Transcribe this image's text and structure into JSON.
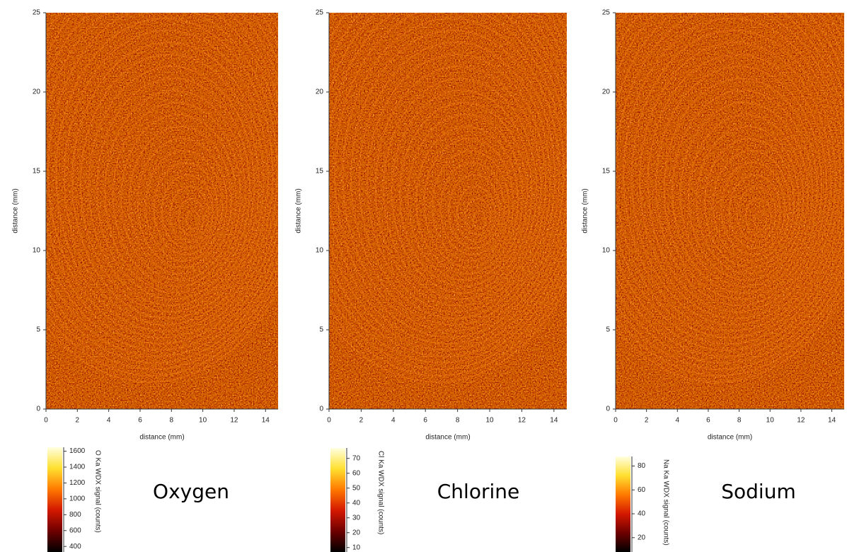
{
  "chart_data": [
    {
      "type": "heatmap",
      "annotation": "Oxygen",
      "xlabel": "distance (mm)",
      "ylabel": "distance (mm)",
      "xlim": [
        0,
        14.8
      ],
      "xticks": [
        0,
        2,
        4,
        6,
        8,
        10,
        12,
        14
      ],
      "ylim": [
        0,
        25
      ],
      "yticks": [
        0,
        5,
        10,
        15,
        20,
        25
      ],
      "colorbar_label": "O Ka WDX signal  (counts)",
      "clim": [
        330,
        1650
      ],
      "colorbar_ticks": [
        400,
        600,
        800,
        1000,
        1200,
        1400,
        1600
      ],
      "colormap": [
        "#000000",
        "#6e0000",
        "#d41800",
        "#ff7a00",
        "#ffe030",
        "#ffffe0"
      ]
    },
    {
      "type": "heatmap",
      "annotation": "Chlorine",
      "xlabel": "distance (mm)",
      "ylabel": "distance (mm)",
      "xlim": [
        0,
        14.8
      ],
      "xticks": [
        0,
        2,
        4,
        6,
        8,
        10,
        12,
        14
      ],
      "ylim": [
        0,
        25
      ],
      "yticks": [
        0,
        5,
        10,
        15,
        20,
        25
      ],
      "colorbar_label": "Cl Ka WDX signal  (counts)",
      "clim": [
        7,
        77
      ],
      "colorbar_ticks": [
        10,
        20,
        30,
        40,
        50,
        60,
        70
      ],
      "colormap": [
        "#000000",
        "#6e0000",
        "#d41800",
        "#ff7a00",
        "#ffe030",
        "#ffffe0"
      ]
    },
    {
      "type": "heatmap",
      "annotation": "Sodium",
      "xlabel": "distance (mm)",
      "ylabel": "distance (mm)",
      "xlim": [
        0,
        14.8
      ],
      "xticks": [
        0,
        2,
        4,
        6,
        8,
        10,
        12,
        14
      ],
      "ylim": [
        0,
        25
      ],
      "yticks": [
        0,
        5,
        10,
        15,
        20,
        25
      ],
      "colorbar_label": "Na Ka WDX signal  (counts)",
      "clim": [
        8,
        88
      ],
      "colorbar_ticks": [
        20,
        40,
        60,
        80
      ],
      "colormap": [
        "#000000",
        "#6e0000",
        "#d41800",
        "#ff7a00",
        "#ffe030",
        "#ffffe0"
      ]
    }
  ]
}
